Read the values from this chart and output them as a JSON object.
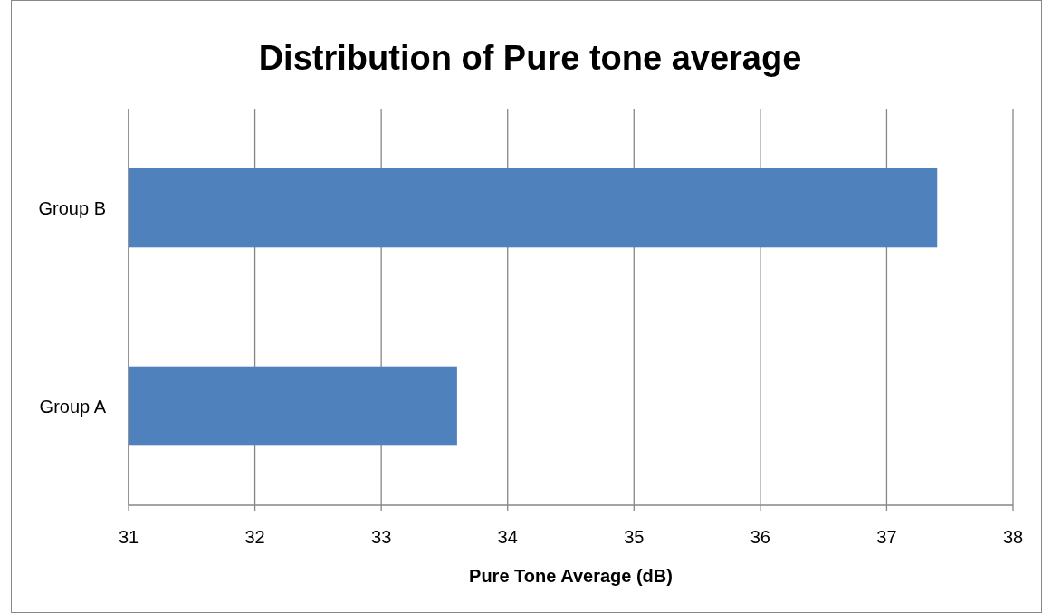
{
  "chart_data": {
    "type": "bar",
    "orientation": "horizontal",
    "title": "Distribution of Pure tone average",
    "xlabel": "Pure Tone Average (dB)",
    "categories": [
      "Group B",
      "Group A"
    ],
    "values": [
      37.4,
      33.6
    ],
    "color": "#4f81bd",
    "xlim": [
      31,
      38
    ],
    "xticks": [
      31,
      32,
      33,
      34,
      35,
      36,
      37,
      38
    ],
    "grid": "x"
  }
}
